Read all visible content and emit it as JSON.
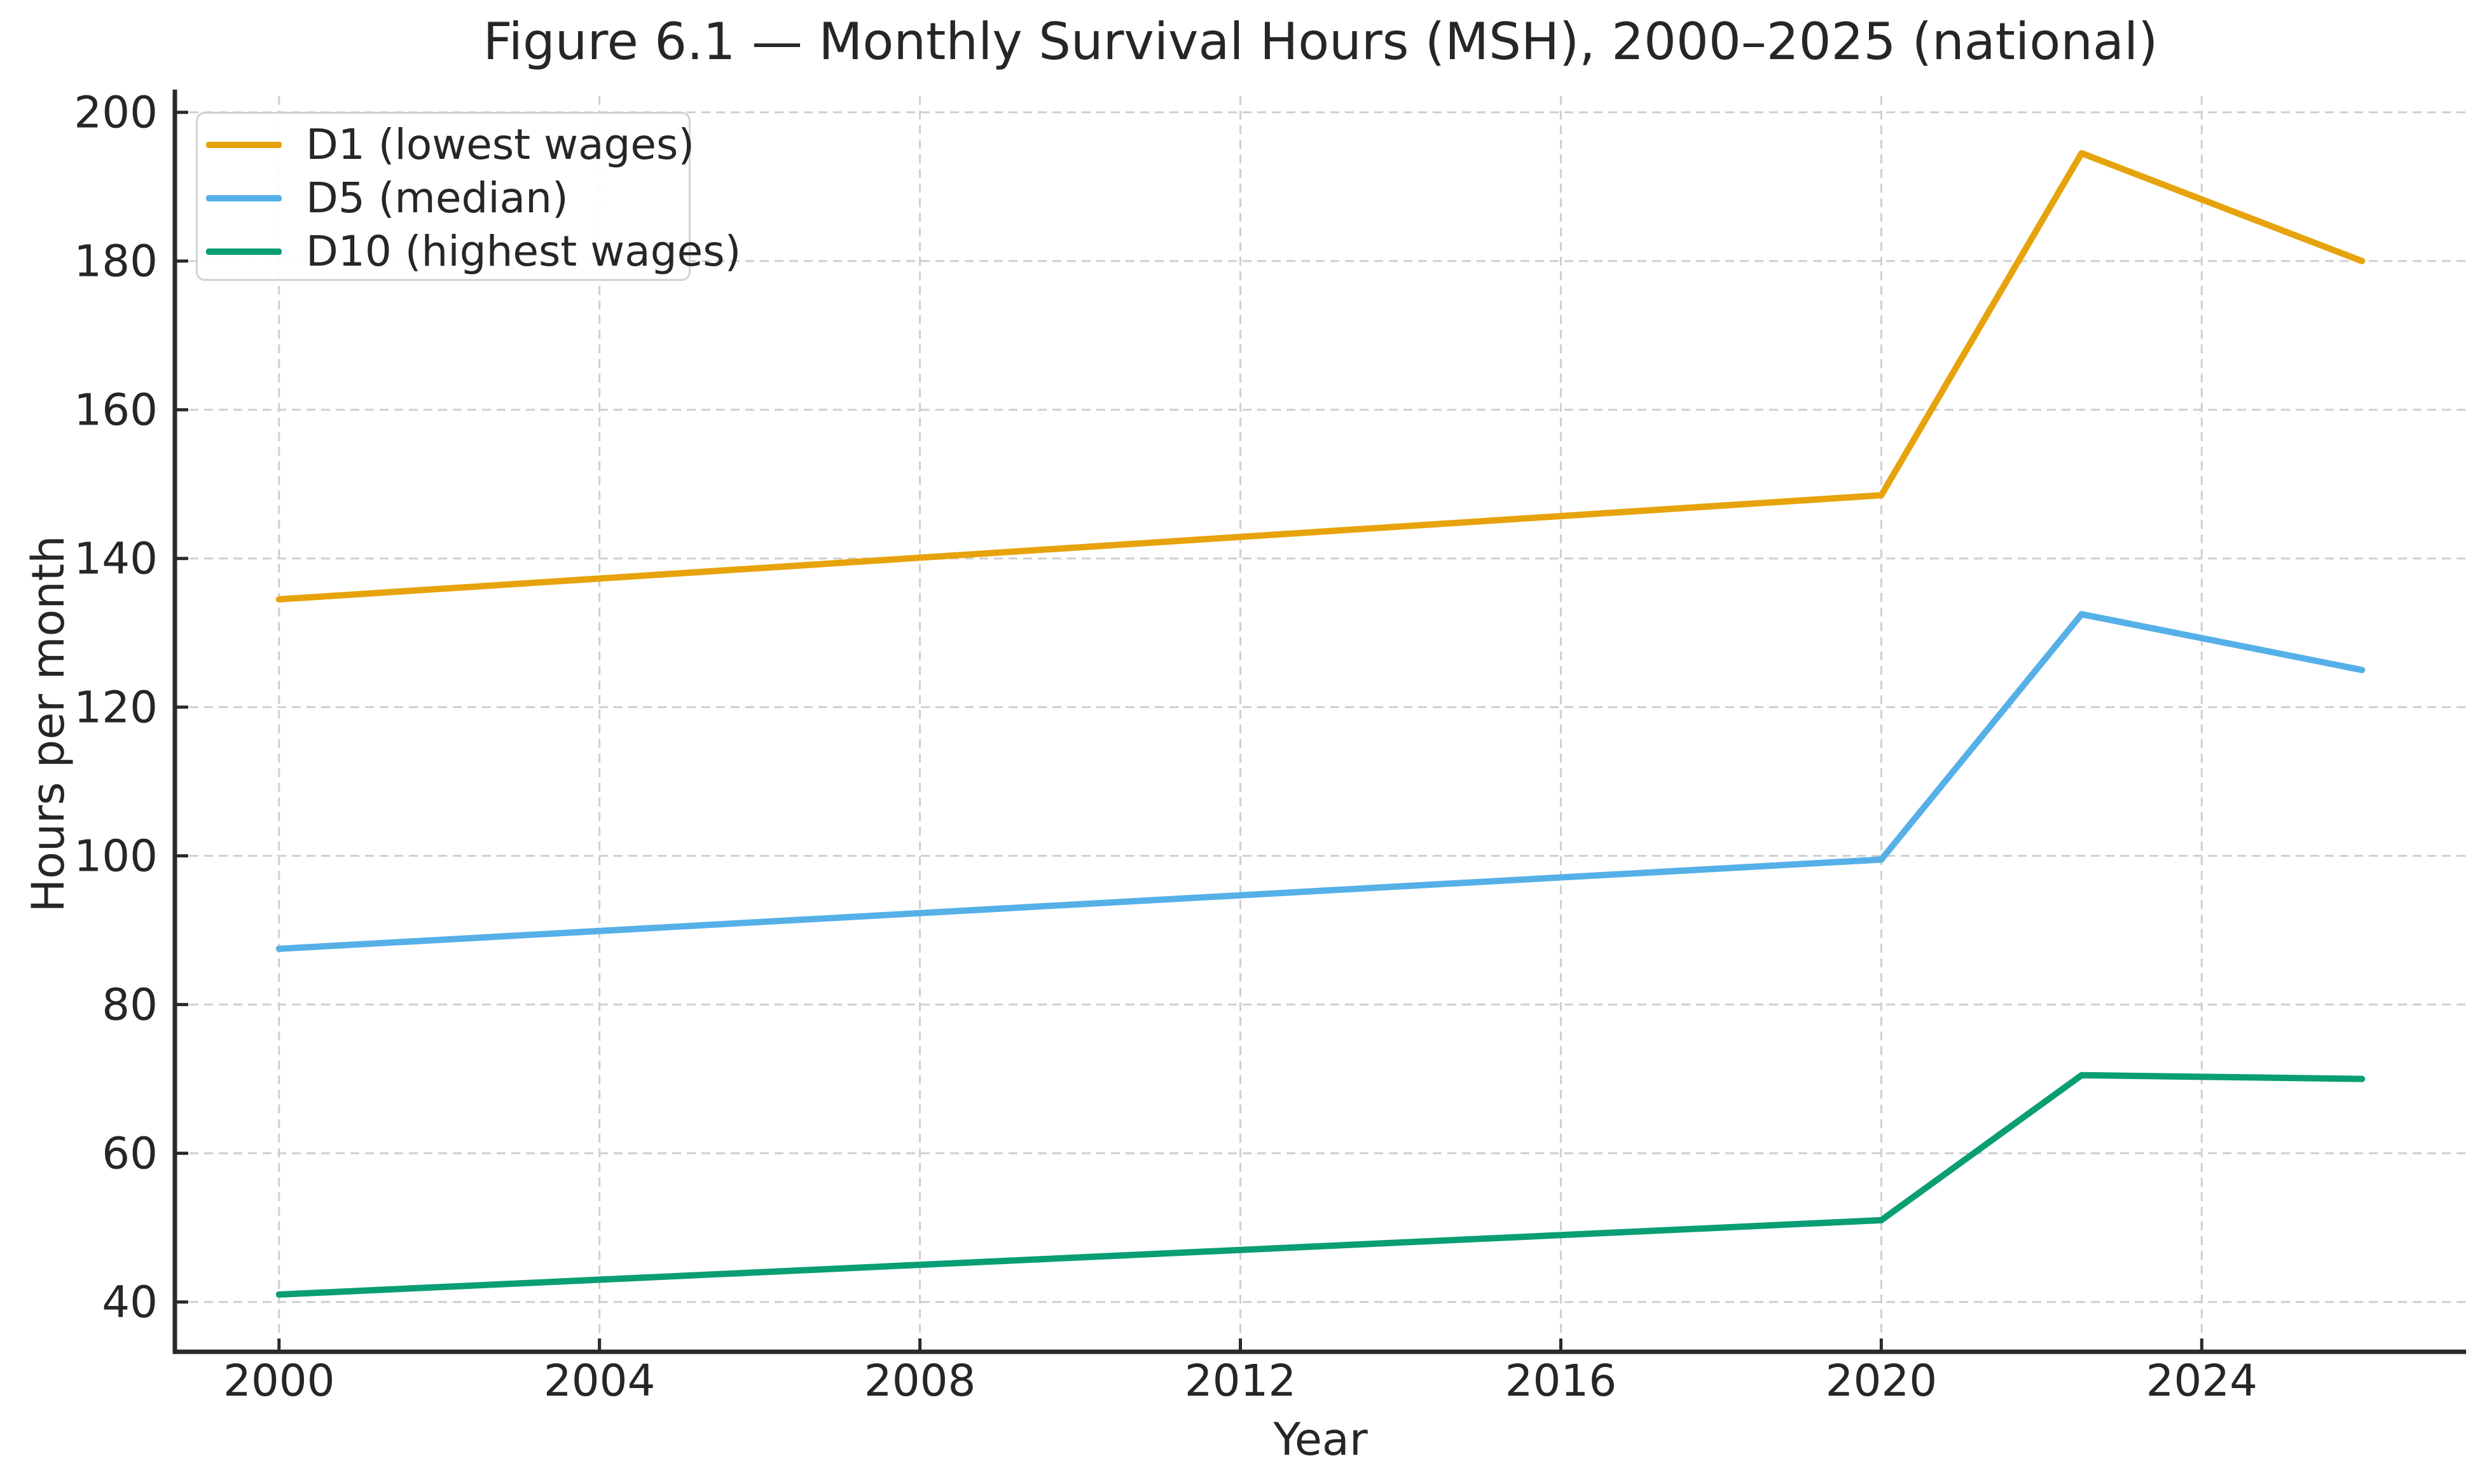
{
  "chart_data": {
    "type": "line",
    "title": "Figure 6.1 — Monthly Survival Hours (MSH), 2000–2025 (national)",
    "xlabel": "Year",
    "ylabel": "Hours per month",
    "x": [
      2000,
      2020,
      2022.5,
      2026
    ],
    "series": [
      {
        "label": "D1 (lowest wages)",
        "color": "#E6A30C",
        "values": [
          134.5,
          148.5,
          194.5,
          180
        ]
      },
      {
        "label": "D5 (median)",
        "color": "#56B0E8",
        "values": [
          87.5,
          99.5,
          132.5,
          125
        ]
      },
      {
        "label": "D10 (highest wages)",
        "color": "#0A9E73",
        "values": [
          41,
          51,
          70.5,
          70
        ]
      }
    ],
    "xticks": [
      2000,
      2004,
      2008,
      2012,
      2016,
      2020,
      2024
    ],
    "yticks": [
      40,
      60,
      80,
      100,
      120,
      140,
      160,
      180,
      200
    ],
    "xlim": [
      1998.7,
      2027.3
    ],
    "ylim": [
      33.3,
      202.2
    ],
    "grid": true,
    "grid_style": "dashed",
    "legend_position": "upper left",
    "style": {
      "grid_color": "#cfcfcf",
      "axis_color": "#2a2a2a",
      "text_color": "#262626",
      "background": "#ffffff"
    }
  }
}
